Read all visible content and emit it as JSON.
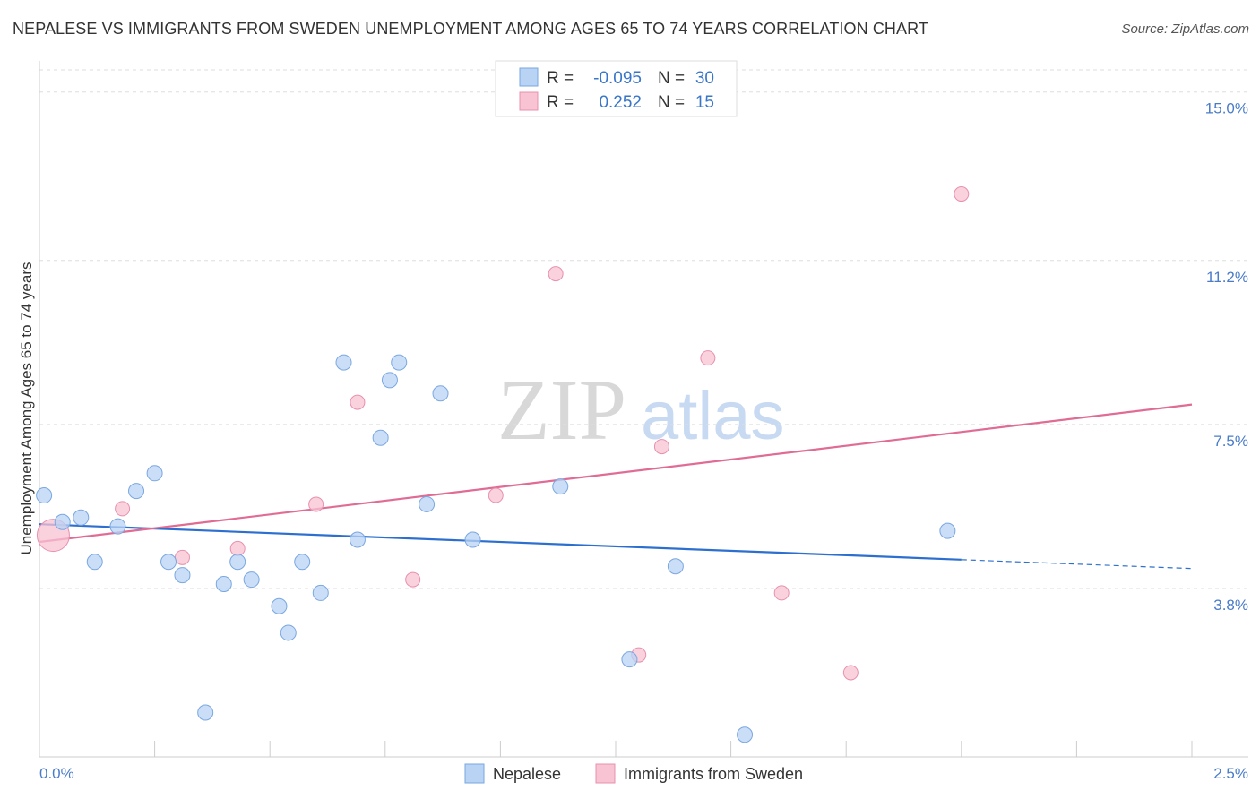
{
  "title": "NEPALESE VS IMMIGRANTS FROM SWEDEN UNEMPLOYMENT AMONG AGES 65 TO 74 YEARS CORRELATION CHART",
  "source": "Source: ZipAtlas.com",
  "watermark": {
    "zip": "ZIP",
    "atlas": "atlas"
  },
  "colors": {
    "blue_fill": "#b8d3f4",
    "blue_stroke": "#7aa7e0",
    "blue_line": "#2d6fcf",
    "pink_fill": "#f8c3d3",
    "pink_stroke": "#e890ad",
    "pink_line": "#e06c96",
    "grid": "#dddddd",
    "tick_text": "#4a7cc9"
  },
  "legend_box": {
    "rows": [
      {
        "r_label": "R =",
        "r_value": "-0.095",
        "n_label": "N =",
        "n_value": "30"
      },
      {
        "r_label": "R =",
        "r_value": "0.252",
        "n_label": "N =",
        "n_value": "15"
      }
    ]
  },
  "bottom_legend": [
    "Nepalese",
    "Immigrants from Sweden"
  ],
  "chart_data": {
    "type": "scatter",
    "title": "NEPALESE VS IMMIGRANTS FROM SWEDEN UNEMPLOYMENT AMONG AGES 65 TO 74 YEARS CORRELATION CHART",
    "xlabel": "",
    "ylabel": "Unemployment Among Ages 65 to 74 years",
    "xlim": [
      0.0,
      2.5
    ],
    "ylim": [
      0.0,
      15.5
    ],
    "x_tick_labels": [
      "0.0%",
      "2.5%"
    ],
    "x_minor_ticks": [
      0.25,
      0.5,
      0.75,
      1.0,
      1.25,
      1.5,
      1.75,
      2.0,
      2.25,
      2.5
    ],
    "y_ticks": [
      3.8,
      7.5,
      11.2,
      15.0
    ],
    "y_tick_labels": [
      "3.8%",
      "7.5%",
      "11.2%",
      "15.0%"
    ],
    "grid": true,
    "series": [
      {
        "name": "Nepalese",
        "color": "blue",
        "points": [
          [
            0.01,
            5.9
          ],
          [
            0.05,
            5.3
          ],
          [
            0.09,
            5.4
          ],
          [
            0.12,
            4.4
          ],
          [
            0.17,
            5.2
          ],
          [
            0.21,
            6.0
          ],
          [
            0.25,
            6.4
          ],
          [
            0.28,
            4.4
          ],
          [
            0.31,
            4.1
          ],
          [
            0.4,
            3.9
          ],
          [
            0.43,
            4.4
          ],
          [
            0.46,
            4.0
          ],
          [
            0.52,
            3.4
          ],
          [
            0.54,
            2.8
          ],
          [
            0.57,
            4.4
          ],
          [
            0.61,
            3.7
          ],
          [
            0.66,
            8.9
          ],
          [
            0.69,
            4.9
          ],
          [
            0.74,
            7.2
          ],
          [
            0.76,
            8.5
          ],
          [
            0.78,
            8.9
          ],
          [
            0.84,
            5.7
          ],
          [
            0.87,
            8.2
          ],
          [
            0.94,
            4.9
          ],
          [
            1.13,
            6.1
          ],
          [
            1.28,
            2.2
          ],
          [
            1.38,
            4.3
          ],
          [
            1.53,
            0.5
          ],
          [
            1.97,
            5.1
          ],
          [
            0.36,
            1.0
          ]
        ],
        "trend": {
          "x0": 0.0,
          "y0": 5.25,
          "x1": 2.0,
          "y1": 4.45,
          "dash_to_x": 2.5,
          "dash_to_y": 4.25
        }
      },
      {
        "name": "Immigrants from Sweden",
        "color": "pink",
        "points": [
          [
            0.03,
            5.0
          ],
          [
            0.18,
            5.6
          ],
          [
            0.31,
            4.5
          ],
          [
            0.43,
            4.7
          ],
          [
            0.6,
            5.7
          ],
          [
            0.69,
            8.0
          ],
          [
            0.81,
            4.0
          ],
          [
            0.99,
            5.9
          ],
          [
            1.12,
            10.9
          ],
          [
            1.3,
            2.3
          ],
          [
            1.35,
            7.0
          ],
          [
            1.45,
            9.0
          ],
          [
            1.61,
            3.7
          ],
          [
            1.76,
            1.9
          ],
          [
            2.0,
            12.7
          ]
        ],
        "big_point_index": 0,
        "trend": {
          "x0": 0.0,
          "y0": 4.85,
          "x1": 2.5,
          "y1": 7.95
        }
      }
    ]
  }
}
